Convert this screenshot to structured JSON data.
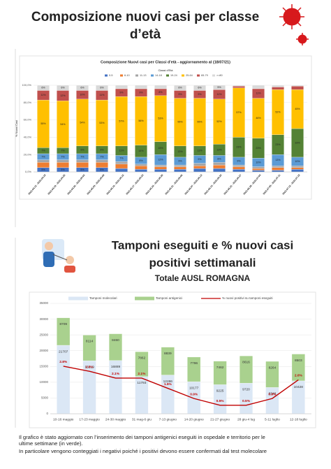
{
  "header": {
    "title_lines": [
      "Composizione nuovi casi per classe",
      "d’età"
    ]
  },
  "section2": {
    "title_lines": [
      "Tamponi eseguiti e % nuovi casi",
      "positivi settimanali"
    ],
    "subtitle": "Totale AUSL ROMAGNA"
  },
  "footer": {
    "lines": [
      "Il grafico è stato aggiornato con l’inserimento dei tamponi antigenici eseguiti in ospedale e territorio per le",
      "ultime settimane (in verde).",
      "In particolare vengono conteggiati i negativi poiché i positivi devono essere confermati dal test molecolare"
    ]
  },
  "chart_data": [
    {
      "type": "bar",
      "title": "Composizione Nuovi casi per Classi d'età - aggiornamento al (18/07/21)",
      "y_label": "% Nuovi Casi",
      "legend_title": "Classi d'Età",
      "stacked": true,
      "categories": [
        "2021.04.12 - 2021.04.18",
        "2021.04.19 - 2021.04.25",
        "2021.04.26 - 2021.05.02",
        "2021.05.03 - 2021.05.09",
        "2021.05.10 - 2021.05.16",
        "2021.05.17 - 2021.05.23",
        "2021.05.24 - 2021.05.30",
        "2021.05.31 - 2021.06.06",
        "2021.06.07 - 2021.06.13",
        "2021.06.14 - 2021.06.20",
        "2021.06.21 - 2021.06.27",
        "2021.06.28 - 2021.07.04",
        "2021.07.05 - 2021.07.11",
        "2021.07.12 - 2021.07.18"
      ],
      "ylim": [
        0,
        100
      ],
      "yticks": [
        {
          "value": 0,
          "label": "0,0%"
        },
        {
          "value": 20,
          "label": "20,0%"
        },
        {
          "value": 40,
          "label": "40,0%"
        },
        {
          "value": 60,
          "label": "60,0%"
        },
        {
          "value": 80,
          "label": "80,0%"
        },
        {
          "value": 100,
          "label": "100,0%"
        }
      ],
      "grid": true,
      "series": [
        {
          "name": "0-5",
          "color": "#4472c4",
          "values": [
            5,
            5,
            5,
            5,
            4,
            3,
            3,
            3,
            4,
            4,
            3,
            2,
            2,
            3
          ],
          "value_labels": [
            "5%",
            "5%",
            "5%",
            "5%",
            null,
            null,
            null,
            null,
            null,
            null,
            null,
            null,
            null,
            null
          ]
        },
        {
          "name": "6-10",
          "color": "#ed7d31",
          "values": [
            6,
            6,
            6,
            6,
            5,
            4,
            3,
            3,
            3,
            4,
            3,
            2,
            3,
            2
          ]
        },
        {
          "name": "11-13",
          "color": "#a5a5a5",
          "values": [
            3,
            3,
            3,
            3,
            3,
            2,
            2,
            2,
            3,
            3,
            2,
            2,
            2,
            2
          ]
        },
        {
          "name": "14-18",
          "color": "#5b9bd5",
          "values": [
            7,
            7,
            7,
            7,
            7,
            8,
            12,
            9,
            9,
            8,
            9,
            10,
            13,
            10
          ],
          "value_labels": [
            "7%",
            "7%",
            "7%",
            "7%",
            "7%",
            "8%",
            "12%",
            "9%",
            "9%",
            "8%",
            "9%",
            "10%",
            "13%",
            "10%"
          ]
        },
        {
          "name": "19-24",
          "color": "#548235",
          "values": [
            7,
            7,
            9,
            9,
            11,
            14,
            15,
            13,
            11,
            13,
            23,
            23,
            23,
            33
          ],
          "value_labels": [
            "7%",
            "7%",
            "9%",
            "9%",
            "11%",
            "14%",
            "15%",
            "13%",
            "11%",
            "13%",
            "23%",
            "23%",
            "23%",
            "33%"
          ]
        },
        {
          "name": "25-64",
          "color": "#ffc000",
          "values": [
            55,
            54,
            54,
            53,
            57,
            56,
            53,
            55,
            55,
            52,
            57,
            46,
            52,
            45
          ],
          "value_labels": [
            "55%",
            "54%",
            "54%",
            "53%",
            "57%",
            "56%",
            "53%",
            "55%",
            "55%",
            "52%",
            "57%",
            "46%",
            "52%",
            "45%"
          ]
        },
        {
          "name": "65-79",
          "color": "#c0504d",
          "values": [
            11,
            12,
            10,
            11,
            9,
            9,
            8,
            9,
            9,
            11,
            2,
            11,
            3,
            4
          ],
          "value_labels": [
            "11%",
            "12%",
            "10%",
            "11%",
            "9%",
            "9%",
            "8%",
            "9%",
            "9%",
            "11%",
            null,
            "11%",
            null,
            null
          ]
        },
        {
          "name": ">=80",
          "color": "#d9d9d9",
          "values": [
            6,
            6,
            6,
            6,
            4,
            4,
            4,
            6,
            6,
            5,
            1,
            4,
            2,
            1
          ],
          "value_labels": [
            "6%",
            "6%",
            "6%",
            "6%",
            null,
            null,
            null,
            "6%",
            "6%",
            "5%",
            null,
            null,
            null,
            null
          ]
        }
      ]
    },
    {
      "type": "bar",
      "stacked": true,
      "categories": [
        "10-16 maggio",
        "17-23 maggio",
        "24-30 maggio",
        "31 mag-6 giu",
        "7-13 giugno",
        "14-20 giugno",
        "21-27 giugno",
        "28 giu-4 lug",
        "5-11 luglio",
        "12-18 luglio"
      ],
      "ylim": [
        0,
        35000
      ],
      "yticks": [
        0,
        5000,
        10000,
        15000,
        20000,
        25000,
        30000,
        35000
      ],
      "y2lim": [
        0,
        6.5
      ],
      "grid": true,
      "series": [
        {
          "name": "Tamponi molecolari",
          "color": "#dbe7f5",
          "values": [
            21707,
            16819,
            16889,
            11793,
            12286,
            10177,
            9225,
            9720,
            8346,
            10428
          ]
        },
        {
          "name": "Tamponi antigenici",
          "color": "#a9d18e",
          "values": [
            8709,
            8114,
            8460,
            7862,
            8839,
            7796,
            7462,
            8616,
            8264,
            8503
          ]
        },
        {
          "name": "% nuovi positivi su tamponi eseguiti",
          "type": "line",
          "axis": "y2",
          "color": "#c00000",
          "values": [
            2.8,
            2.5,
            2.1,
            2.1,
            1.5,
            0.9,
            0.5,
            0.5,
            0.9,
            2.0
          ],
          "value_labels": [
            "2.8%",
            "2.5%",
            "2.1%",
            "2.1%",
            "1.5%",
            "0.9%",
            "0.5%",
            "0.5%",
            "0.9%",
            "2.0%"
          ]
        }
      ]
    }
  ]
}
